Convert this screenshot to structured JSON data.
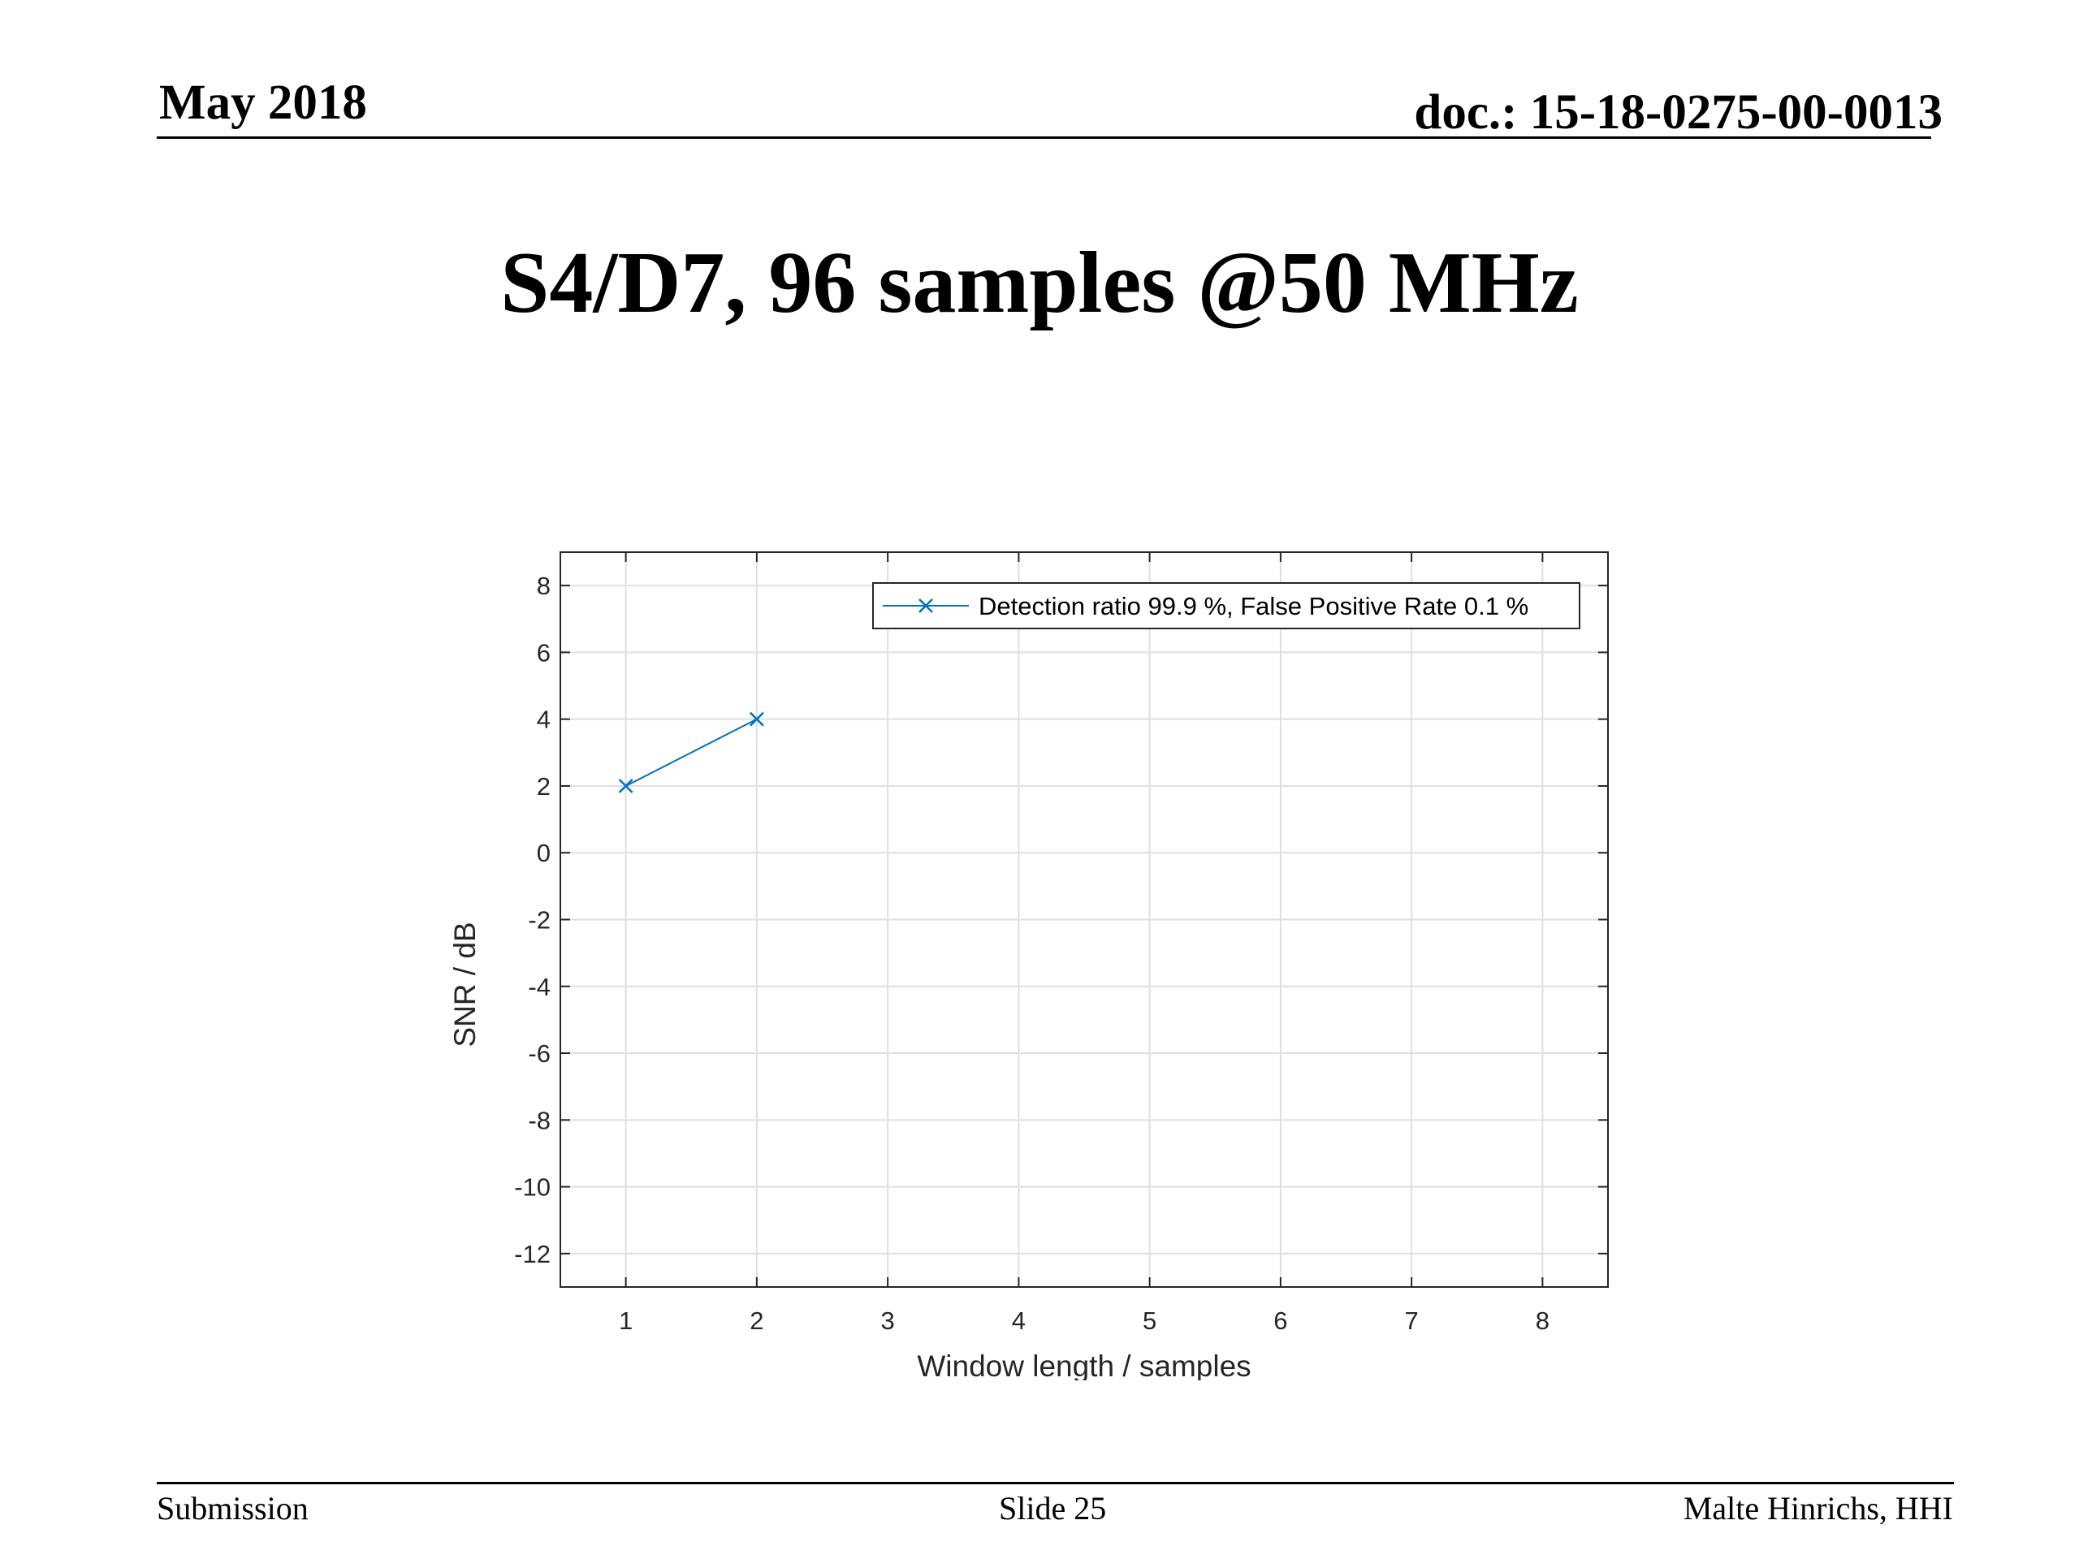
{
  "slide": {
    "header_left": "May 2018",
    "header_right": "doc.: 15-18-0275-00-0013",
    "title": "S4/D7, 96 samples @50 MHz",
    "footer_left": "Submission",
    "footer_center": "Slide 25",
    "footer_right": "Malte Hinrichs, HHI"
  },
  "chart_data": {
    "type": "line",
    "title": "",
    "xlabel": "Window length / samples",
    "ylabel": "SNR / dB",
    "xlim": [
      0.5,
      8.5
    ],
    "ylim": [
      -13,
      9
    ],
    "xticks": [
      1,
      2,
      3,
      4,
      5,
      6,
      7,
      8
    ],
    "yticks": [
      -12,
      -10,
      -8,
      -6,
      -4,
      -2,
      0,
      2,
      4,
      6,
      8
    ],
    "grid": true,
    "legend_position": "top-right",
    "series": [
      {
        "name": "Detection ratio 99.9 %, False Positive Rate 0.1 %",
        "color": "#0072BD",
        "marker": "x",
        "x": [
          1,
          2
        ],
        "y": [
          2,
          4
        ]
      }
    ]
  }
}
